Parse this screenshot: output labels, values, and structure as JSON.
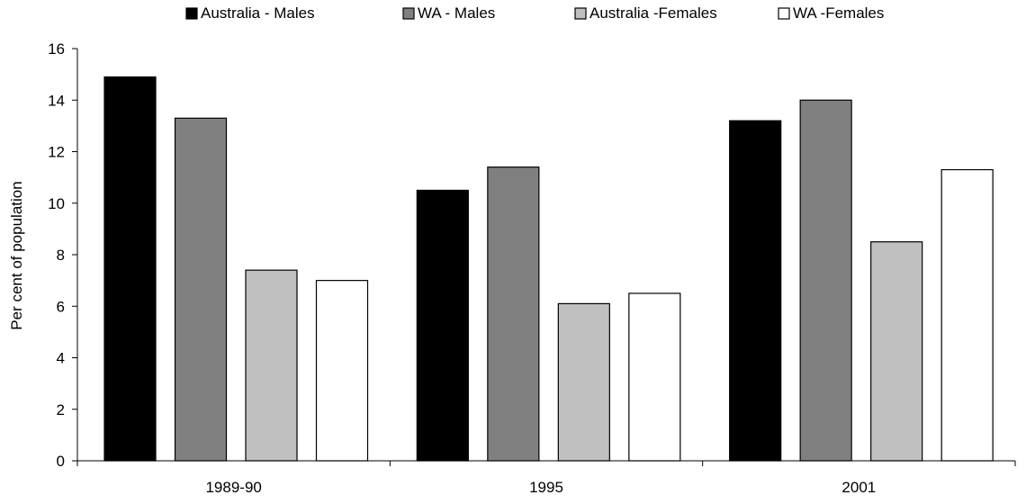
{
  "chart_data": {
    "type": "bar",
    "title": "",
    "xlabel": "",
    "ylabel": "Per cent of population",
    "categories": [
      "1989-90",
      "1995",
      "2001"
    ],
    "ylim": [
      0,
      16
    ],
    "yticks": [
      0,
      2,
      4,
      6,
      8,
      10,
      12,
      14,
      16
    ],
    "grid": false,
    "legend_position": "top",
    "series": [
      {
        "name": "Australia - Males",
        "color": "#000000",
        "values": [
          14.9,
          10.5,
          13.2
        ]
      },
      {
        "name": "WA - Males",
        "color": "#808080",
        "values": [
          13.3,
          11.4,
          14.0
        ]
      },
      {
        "name": "Australia -Females",
        "color": "#c0c0c0",
        "values": [
          7.4,
          6.1,
          8.5
        ]
      },
      {
        "name": "WA -Females",
        "color": "#ffffff",
        "values": [
          7.0,
          6.5,
          11.3
        ]
      }
    ]
  }
}
